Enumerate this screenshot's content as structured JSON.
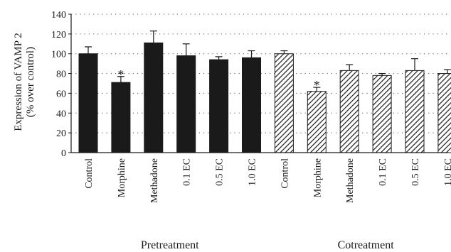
{
  "chart_data": {
    "type": "bar",
    "ylabel_lines": [
      "Expression of VAMP 2",
      "(% over control)"
    ],
    "ylim": [
      0,
      140
    ],
    "yticks": [
      0,
      20,
      40,
      60,
      80,
      100,
      120,
      140
    ],
    "grid": "dotted-horizontal",
    "groups": [
      {
        "label": "Pretreatment",
        "fill": "solid-black",
        "bars": [
          {
            "category": "Control",
            "value": 100,
            "error": 7,
            "significant": false
          },
          {
            "category": "Morphine",
            "value": 71,
            "error": 6,
            "significant": true
          },
          {
            "category": "Methadone",
            "value": 111,
            "error": 12,
            "significant": false
          },
          {
            "category": "0.1 EC",
            "value": 98,
            "error": 12,
            "significant": false
          },
          {
            "category": "0.5 EC",
            "value": 94,
            "error": 3,
            "significant": false
          },
          {
            "category": "1.0 EC",
            "value": 96,
            "error": 7,
            "significant": false
          }
        ]
      },
      {
        "label": "Cotreatment",
        "fill": "diagonal-hatch",
        "bars": [
          {
            "category": "Control",
            "value": 100,
            "error": 3,
            "significant": false
          },
          {
            "category": "Morphine",
            "value": 62,
            "error": 4,
            "significant": true
          },
          {
            "category": "Methadone",
            "value": 83,
            "error": 6,
            "significant": false
          },
          {
            "category": "0.1 EC",
            "value": 78,
            "error": 2,
            "significant": false
          },
          {
            "category": "0.5 EC",
            "value": 83,
            "error": 12,
            "significant": false
          },
          {
            "category": "1.0 EC",
            "value": 80,
            "error": 4,
            "significant": false
          }
        ]
      }
    ],
    "significance_marker": "*",
    "colors": {
      "solid": "#1a1a1a",
      "hatch": "#1a1a1a",
      "axis": "#1a1a1a",
      "grid": "#555555"
    }
  }
}
